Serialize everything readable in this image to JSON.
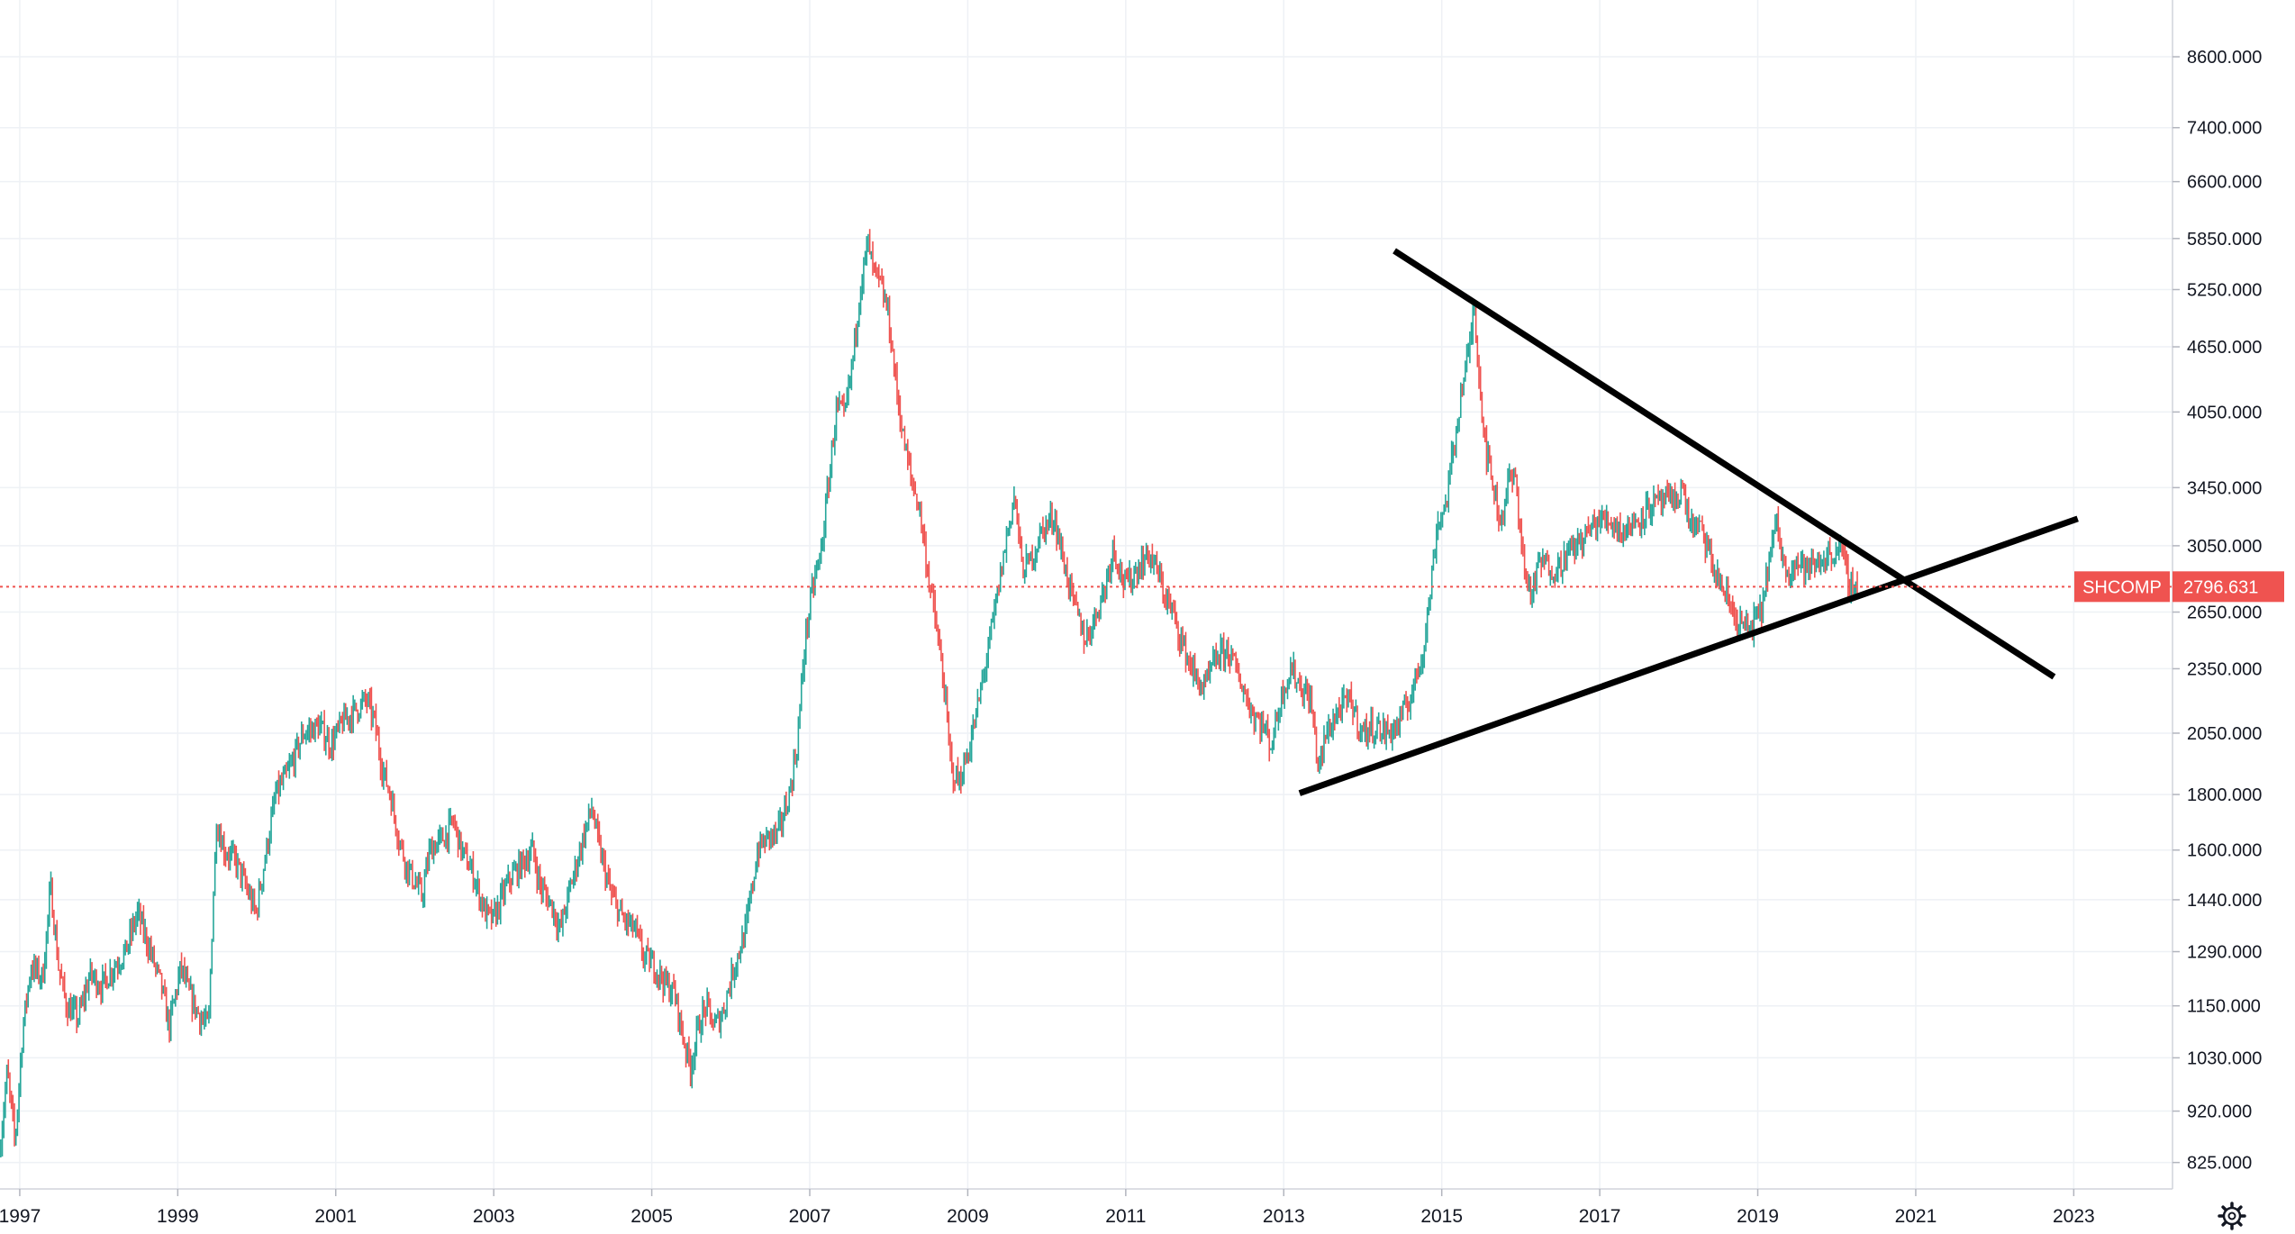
{
  "chart_data": {
    "type": "candlestick",
    "symbol": "SHCOMP",
    "last_price": 2796.631,
    "last_price_label": "2796.631",
    "y_scale": "log",
    "ylim": [
      780,
      9700
    ],
    "xlim": [
      1996.75,
      2024.25
    ],
    "grid": true,
    "y_ticks": [
      {
        "value": 825,
        "label": "825.000"
      },
      {
        "value": 920,
        "label": "920.000"
      },
      {
        "value": 1030,
        "label": "1030.000"
      },
      {
        "value": 1150,
        "label": "1150.000"
      },
      {
        "value": 1290,
        "label": "1290.000"
      },
      {
        "value": 1440,
        "label": "1440.000"
      },
      {
        "value": 1600,
        "label": "1600.000"
      },
      {
        "value": 1800,
        "label": "1800.000"
      },
      {
        "value": 2050,
        "label": "2050.000"
      },
      {
        "value": 2350,
        "label": "2350.000"
      },
      {
        "value": 2650,
        "label": "2650.000"
      },
      {
        "value": 3050,
        "label": "3050.000"
      },
      {
        "value": 3450,
        "label": "3450.000"
      },
      {
        "value": 4050,
        "label": "4050.000"
      },
      {
        "value": 4650,
        "label": "4650.000"
      },
      {
        "value": 5250,
        "label": "5250.000"
      },
      {
        "value": 5850,
        "label": "5850.000"
      },
      {
        "value": 6600,
        "label": "6600.000"
      },
      {
        "value": 7400,
        "label": "7400.000"
      },
      {
        "value": 8600,
        "label": "8600.000"
      }
    ],
    "x_ticks": [
      {
        "value": 1997,
        "label": "1997"
      },
      {
        "value": 1999,
        "label": "1999"
      },
      {
        "value": 2001,
        "label": "2001"
      },
      {
        "value": 2003,
        "label": "2003"
      },
      {
        "value": 2005,
        "label": "2005"
      },
      {
        "value": 2007,
        "label": "2007"
      },
      {
        "value": 2009,
        "label": "2009"
      },
      {
        "value": 2011,
        "label": "2011"
      },
      {
        "value": 2013,
        "label": "2013"
      },
      {
        "value": 2015,
        "label": "2015"
      },
      {
        "value": 2017,
        "label": "2017"
      },
      {
        "value": 2019,
        "label": "2019"
      },
      {
        "value": 2021,
        "label": "2021"
      },
      {
        "value": 2023,
        "label": "2023"
      }
    ],
    "price_path": [
      [
        1996.75,
        840
      ],
      [
        1996.85,
        1000
      ],
      [
        1996.95,
        860
      ],
      [
        1997.05,
        1100
      ],
      [
        1997.15,
        1250
      ],
      [
        1997.3,
        1220
      ],
      [
        1997.4,
        1480
      ],
      [
        1997.5,
        1250
      ],
      [
        1997.6,
        1150
      ],
      [
        1997.75,
        1120
      ],
      [
        1997.9,
        1230
      ],
      [
        1998.05,
        1200
      ],
      [
        1998.2,
        1250
      ],
      [
        1998.35,
        1290
      ],
      [
        1998.5,
        1400
      ],
      [
        1998.65,
        1300
      ],
      [
        1998.8,
        1200
      ],
      [
        1998.9,
        1100
      ],
      [
        1999.05,
        1250
      ],
      [
        1999.15,
        1180
      ],
      [
        1999.3,
        1120
      ],
      [
        1999.4,
        1100
      ],
      [
        1999.45,
        1400
      ],
      [
        1999.5,
        1700
      ],
      [
        1999.6,
        1600
      ],
      [
        1999.75,
        1560
      ],
      [
        1999.9,
        1460
      ],
      [
        2000.0,
        1400
      ],
      [
        2000.1,
        1550
      ],
      [
        2000.25,
        1800
      ],
      [
        2000.4,
        1880
      ],
      [
        2000.6,
        2050
      ],
      [
        2000.8,
        2080
      ],
      [
        2000.95,
        2000
      ],
      [
        2001.1,
        2100
      ],
      [
        2001.25,
        2150
      ],
      [
        2001.4,
        2200
      ],
      [
        2001.5,
        2100
      ],
      [
        2001.6,
        1900
      ],
      [
        2001.7,
        1800
      ],
      [
        2001.8,
        1650
      ],
      [
        2001.9,
        1550
      ],
      [
        2002.0,
        1500
      ],
      [
        2002.1,
        1450
      ],
      [
        2002.2,
        1600
      ],
      [
        2002.4,
        1650
      ],
      [
        2002.5,
        1700
      ],
      [
        2002.6,
        1600
      ],
      [
        2002.75,
        1520
      ],
      [
        2002.9,
        1400
      ],
      [
        2003.0,
        1380
      ],
      [
        2003.2,
        1500
      ],
      [
        2003.35,
        1550
      ],
      [
        2003.5,
        1600
      ],
      [
        2003.6,
        1480
      ],
      [
        2003.75,
        1420
      ],
      [
        2003.85,
        1350
      ],
      [
        2004.0,
        1500
      ],
      [
        2004.15,
        1650
      ],
      [
        2004.25,
        1750
      ],
      [
        2004.35,
        1600
      ],
      [
        2004.5,
        1450
      ],
      [
        2004.65,
        1380
      ],
      [
        2004.8,
        1350
      ],
      [
        2004.9,
        1280
      ],
      [
        2005.05,
        1250
      ],
      [
        2005.2,
        1200
      ],
      [
        2005.3,
        1180
      ],
      [
        2005.4,
        1080
      ],
      [
        2005.5,
        1010
      ],
      [
        2005.6,
        1100
      ],
      [
        2005.7,
        1150
      ],
      [
        2005.8,
        1100
      ],
      [
        2005.9,
        1130
      ],
      [
        2006.05,
        1250
      ],
      [
        2006.2,
        1350
      ],
      [
        2006.35,
        1600
      ],
      [
        2006.5,
        1650
      ],
      [
        2006.6,
        1650
      ],
      [
        2006.75,
        1800
      ],
      [
        2006.85,
        2000
      ],
      [
        2006.95,
        2500
      ],
      [
        2007.05,
        2800
      ],
      [
        2007.15,
        3000
      ],
      [
        2007.25,
        3500
      ],
      [
        2007.35,
        4100
      ],
      [
        2007.45,
        4000
      ],
      [
        2007.55,
        4500
      ],
      [
        2007.65,
        5300
      ],
      [
        2007.75,
        5800
      ],
      [
        2007.8,
        5500
      ],
      [
        2007.9,
        5300
      ],
      [
        2008.0,
        5000
      ],
      [
        2008.1,
        4300
      ],
      [
        2008.2,
        3800
      ],
      [
        2008.3,
        3500
      ],
      [
        2008.4,
        3300
      ],
      [
        2008.5,
        2900
      ],
      [
        2008.6,
        2600
      ],
      [
        2008.7,
        2300
      ],
      [
        2008.8,
        1900
      ],
      [
        2008.9,
        1850
      ],
      [
        2009.0,
        1950
      ],
      [
        2009.1,
        2100
      ],
      [
        2009.2,
        2300
      ],
      [
        2009.35,
        2650
      ],
      [
        2009.5,
        3100
      ],
      [
        2009.6,
        3400
      ],
      [
        2009.7,
        2900
      ],
      [
        2009.8,
        2950
      ],
      [
        2009.95,
        3150
      ],
      [
        2010.1,
        3250
      ],
      [
        2010.2,
        3000
      ],
      [
        2010.35,
        2700
      ],
      [
        2010.5,
        2500
      ],
      [
        2010.6,
        2600
      ],
      [
        2010.75,
        2800
      ],
      [
        2010.85,
        3050
      ],
      [
        2011.0,
        2800
      ],
      [
        2011.15,
        2900
      ],
      [
        2011.3,
        3000
      ],
      [
        2011.4,
        2900
      ],
      [
        2011.5,
        2750
      ],
      [
        2011.6,
        2650
      ],
      [
        2011.75,
        2450
      ],
      [
        2011.9,
        2300
      ],
      [
        2012.0,
        2250
      ],
      [
        2012.15,
        2400
      ],
      [
        2012.3,
        2450
      ],
      [
        2012.45,
        2300
      ],
      [
        2012.6,
        2150
      ],
      [
        2012.75,
        2080
      ],
      [
        2012.85,
        2000
      ],
      [
        2013.0,
        2250
      ],
      [
        2013.1,
        2350
      ],
      [
        2013.25,
        2250
      ],
      [
        2013.35,
        2200
      ],
      [
        2013.45,
        1900
      ],
      [
        2013.55,
        2050
      ],
      [
        2013.7,
        2150
      ],
      [
        2013.85,
        2200
      ],
      [
        2014.0,
        2050
      ],
      [
        2014.15,
        2080
      ],
      [
        2014.3,
        2050
      ],
      [
        2014.45,
        2080
      ],
      [
        2014.6,
        2200
      ],
      [
        2014.75,
        2400
      ],
      [
        2014.85,
        2700
      ],
      [
        2014.95,
        3200
      ],
      [
        2015.05,
        3300
      ],
      [
        2015.15,
        3700
      ],
      [
        2015.25,
        4200
      ],
      [
        2015.35,
        4600
      ],
      [
        2015.42,
        5100
      ],
      [
        2015.5,
        4200
      ],
      [
        2015.58,
        3700
      ],
      [
        2015.65,
        3500
      ],
      [
        2015.75,
        3200
      ],
      [
        2015.85,
        3500
      ],
      [
        2015.95,
        3500
      ],
      [
        2016.05,
        2900
      ],
      [
        2016.15,
        2750
      ],
      [
        2016.25,
        2950
      ],
      [
        2016.45,
        2900
      ],
      [
        2016.6,
        3000
      ],
      [
        2016.8,
        3100
      ],
      [
        2016.95,
        3200
      ],
      [
        2017.1,
        3230
      ],
      [
        2017.3,
        3150
      ],
      [
        2017.45,
        3200
      ],
      [
        2017.6,
        3300
      ],
      [
        2017.8,
        3350
      ],
      [
        2017.95,
        3350
      ],
      [
        2018.05,
        3450
      ],
      [
        2018.15,
        3200
      ],
      [
        2018.3,
        3150
      ],
      [
        2018.45,
        2900
      ],
      [
        2018.6,
        2750
      ],
      [
        2018.75,
        2600
      ],
      [
        2018.9,
        2550
      ],
      [
        2019.05,
        2650
      ],
      [
        2019.15,
        2950
      ],
      [
        2019.25,
        3200
      ],
      [
        2019.35,
        2900
      ],
      [
        2019.5,
        2950
      ],
      [
        2019.65,
        2900
      ],
      [
        2019.8,
        2950
      ],
      [
        2019.95,
        3000
      ],
      [
        2020.05,
        3050
      ],
      [
        2020.12,
        2900
      ],
      [
        2020.2,
        2800
      ],
      [
        2020.25,
        2796.631
      ]
    ],
    "trend_lines": [
      {
        "name": "upper",
        "from": [
          2014.4,
          5700
        ],
        "to": [
          2022.75,
          2310
        ]
      },
      {
        "name": "lower",
        "from": [
          2013.2,
          1805
        ],
        "to": [
          2023.05,
          3230
        ]
      }
    ]
  }
}
